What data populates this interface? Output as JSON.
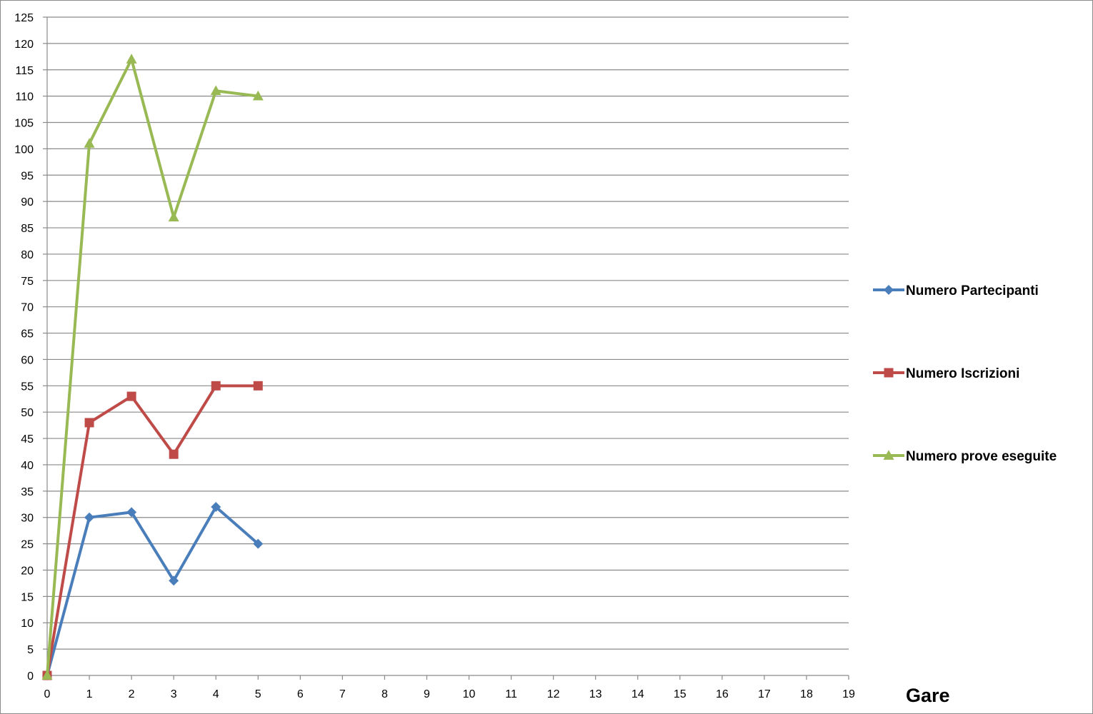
{
  "chart_data": {
    "type": "line",
    "title": "",
    "xlabel": "Gare",
    "ylabel": "",
    "xlim": [
      0,
      19
    ],
    "ylim": [
      0,
      125
    ],
    "x_ticks": [
      0,
      1,
      2,
      3,
      4,
      5,
      6,
      7,
      8,
      9,
      10,
      11,
      12,
      13,
      14,
      15,
      16,
      17,
      18,
      19
    ],
    "y_ticks": [
      0,
      5,
      10,
      15,
      20,
      25,
      30,
      35,
      40,
      45,
      50,
      55,
      60,
      65,
      70,
      75,
      80,
      85,
      90,
      95,
      100,
      105,
      110,
      115,
      120,
      125
    ],
    "grid": "horizontal",
    "legend_position": "right",
    "x": [
      0,
      1,
      2,
      3,
      4,
      5
    ],
    "series": [
      {
        "name": "Numero Partecipanti",
        "color": "#4a7ebb",
        "marker": "diamond",
        "values": [
          0,
          30,
          31,
          18,
          32,
          25
        ]
      },
      {
        "name": "Numero Iscrizioni",
        "color": "#be4b48",
        "marker": "square",
        "values": [
          0,
          48,
          53,
          42,
          55,
          55
        ]
      },
      {
        "name": "Numero prove eseguite",
        "color": "#98b954",
        "marker": "triangle",
        "values": [
          0,
          101,
          117,
          87,
          111,
          110
        ]
      }
    ]
  }
}
